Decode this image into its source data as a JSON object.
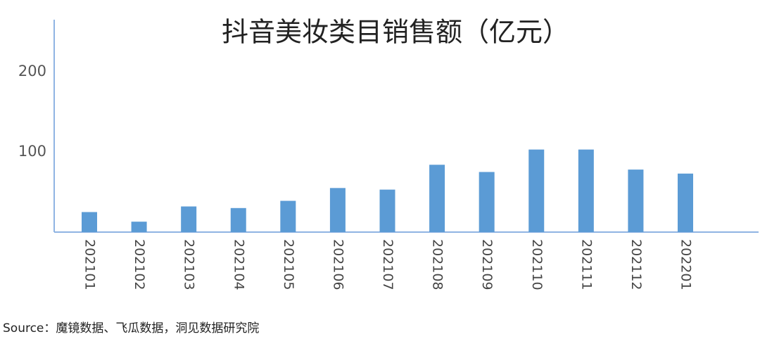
{
  "chart_data": {
    "type": "bar",
    "title": "抖音美妆类目销售额（亿元）",
    "categories": [
      "202101",
      "202102",
      "202103",
      "202104",
      "202105",
      "202106",
      "202107",
      "202108",
      "202109",
      "202110",
      "202111",
      "202112",
      "202201"
    ],
    "values": [
      25,
      13,
      32,
      30,
      39,
      55,
      53,
      84,
      75,
      103,
      103,
      78,
      73
    ],
    "color": "#5b9bd5",
    "ylim": [
      0,
      265
    ],
    "yticks": [
      100,
      200
    ],
    "grid": false,
    "source": "Source：魔镜数据、飞瓜数据，洞见数据研究院"
  }
}
